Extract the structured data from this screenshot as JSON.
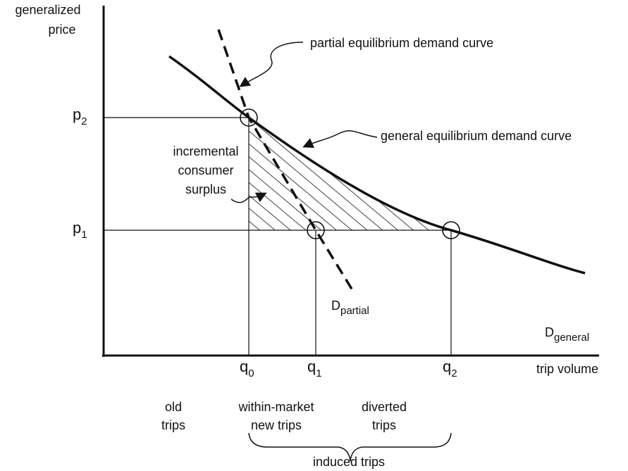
{
  "axes": {
    "y_label": [
      "generalized",
      "price"
    ],
    "x_label": "trip volume"
  },
  "prices": [
    {
      "base": "p",
      "sub": "2"
    },
    {
      "base": "p",
      "sub": "1"
    }
  ],
  "quantities": [
    {
      "base": "q",
      "sub": "0"
    },
    {
      "base": "q",
      "sub": "1"
    },
    {
      "base": "q",
      "sub": "2"
    }
  ],
  "curves": {
    "partial": {
      "annotation": "partial equilibrium demand curve",
      "label": {
        "base": "D",
        "sub": "partial"
      }
    },
    "general": {
      "annotation": "general equilibrium demand curve",
      "label": {
        "base": "D",
        "sub": "general"
      }
    }
  },
  "surplus_label": [
    "incremental",
    "consumer",
    "surplus"
  ],
  "trip_groups": [
    [
      "old",
      "trips"
    ],
    [
      "within-market",
      "new trips"
    ],
    [
      "diverted",
      "trips"
    ]
  ],
  "induced_label": "induced trips"
}
